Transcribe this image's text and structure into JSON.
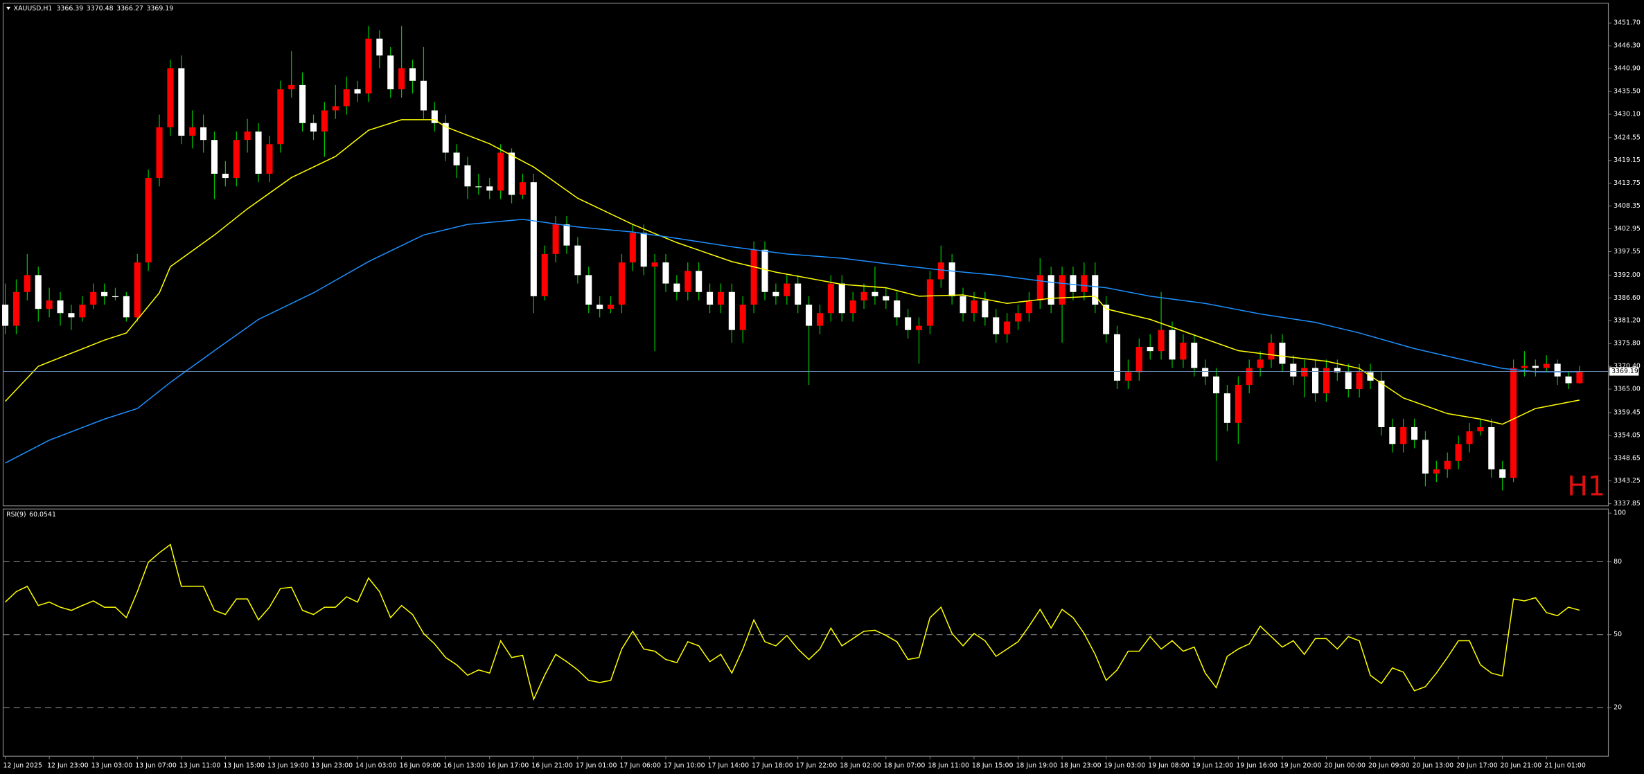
{
  "chart_data": [
    {
      "type": "candlestick",
      "title": "XAUUSD,H1",
      "timeframe_label": "H1",
      "up_color": "#ff0000",
      "down_color": "#ffffff",
      "wick_color": "#00c800",
      "price_line_color": "#6a8fb5",
      "open": [
        3385,
        3380,
        3388,
        3392,
        3384,
        3386,
        3383,
        3382,
        3385,
        3388,
        3387,
        3387,
        3382,
        3395,
        3415,
        3427,
        3441,
        3425,
        3427,
        3424,
        3416,
        3415,
        3424,
        3426,
        3416,
        3423,
        3436,
        3437,
        3428,
        3426,
        3431,
        3432,
        3436,
        3435,
        3448,
        3444,
        3436,
        3441,
        3438,
        3431,
        3428,
        3421,
        3418,
        3413,
        3413,
        3412,
        3421,
        3411,
        3414,
        3387,
        3397,
        3404,
        3399,
        3392,
        3385,
        3384,
        3385,
        3395,
        3402,
        3394,
        3395,
        3390,
        3388,
        3393,
        3388,
        3385,
        3388,
        3379,
        3385,
        3398,
        3388,
        3387,
        3390,
        3385,
        3380,
        3383,
        3390,
        3383,
        3386,
        3388,
        3387,
        3386,
        3382,
        3379,
        3380,
        3391,
        3395,
        3387,
        3383,
        3386,
        3382,
        3378,
        3381,
        3383,
        3386,
        3392,
        3385,
        3392,
        3388,
        3392,
        3385,
        3378,
        3367,
        3369,
        3375,
        3374,
        3379,
        3372,
        3376,
        3370,
        3368,
        3364,
        3357,
        3366,
        3370,
        3372,
        3376,
        3371,
        3368,
        3370,
        3364,
        3370,
        3369,
        3365,
        3369,
        3367,
        3356,
        3352,
        3356,
        3353,
        3345,
        3346,
        3348,
        3352,
        3355,
        3356,
        3346,
        3344,
        3370,
        3370.5,
        3370,
        3371,
        3368,
        3366.39
      ],
      "high": [
        3390,
        3391,
        3397,
        3394,
        3389,
        3388,
        3385,
        3387,
        3390,
        3390,
        3389,
        3388,
        3397,
        3417,
        3430,
        3443,
        3444,
        3431,
        3430,
        3426,
        3419,
        3426,
        3429,
        3428,
        3425,
        3438,
        3445,
        3440,
        3430,
        3433,
        3437,
        3439,
        3438,
        3451,
        3450,
        3446,
        3451,
        3443,
        3446,
        3433,
        3430,
        3423,
        3420,
        3416,
        3415,
        3423,
        3422,
        3416,
        3416,
        3399,
        3406,
        3406,
        3401,
        3394,
        3387,
        3387,
        3397,
        3404,
        3404,
        3397,
        3397,
        3392,
        3395,
        3395,
        3390,
        3390,
        3390,
        3387,
        3400,
        3400,
        3390,
        3392,
        3392,
        3387,
        3385,
        3392,
        3392,
        3388,
        3390,
        3394,
        3389,
        3388,
        3384,
        3382,
        3393,
        3399,
        3397,
        3389,
        3388,
        3388,
        3384,
        3383,
        3385,
        3388,
        3396,
        3394,
        3394,
        3394,
        3395,
        3395,
        3387,
        3380,
        3372,
        3377,
        3378,
        3388,
        3381,
        3378,
        3378,
        3372,
        3370,
        3366,
        3368,
        3372,
        3374,
        3378,
        3378,
        3373,
        3372,
        3372,
        3372,
        3372,
        3371,
        3371,
        3371,
        3369,
        3358,
        3358,
        3358,
        3355,
        3348,
        3350,
        3354,
        3357,
        3358,
        3358,
        3348,
        3372,
        3374,
        3372,
        3373,
        3372,
        3369,
        3370.48
      ],
      "low": [
        3378,
        3378,
        3386,
        3381,
        3382,
        3380,
        3379,
        3381,
        3384,
        3385,
        3386,
        3381,
        3381,
        3393,
        3413,
        3425,
        3423,
        3422,
        3421,
        3410,
        3413,
        3413,
        3421,
        3414,
        3414,
        3421,
        3434,
        3426,
        3424,
        3420,
        3429,
        3430,
        3433,
        3433,
        3441,
        3434,
        3434,
        3435,
        3429,
        3426,
        3419,
        3415,
        3410,
        3411,
        3410,
        3410,
        3409,
        3410,
        3383,
        3386,
        3395,
        3397,
        3390,
        3383,
        3382,
        3383,
        3383,
        3393,
        3392,
        3374,
        3388,
        3386,
        3386,
        3386,
        3383,
        3383,
        3376,
        3376,
        3383,
        3386,
        3385,
        3385,
        3383,
        3366,
        3378,
        3381,
        3381,
        3381,
        3384,
        3385,
        3384,
        3380,
        3377,
        3371,
        3378,
        3389,
        3385,
        3381,
        3381,
        3380,
        3376,
        3376,
        3379,
        3381,
        3384,
        3383,
        3376,
        3386,
        3386,
        3383,
        3376,
        3365,
        3365,
        3367,
        3372,
        3372,
        3370,
        3370,
        3368,
        3366,
        3348,
        3355,
        3352,
        3364,
        3368,
        3370,
        3369,
        3366,
        3363,
        3362,
        3362,
        3367,
        3363,
        3363,
        3365,
        3354,
        3350,
        3350,
        3351,
        3342,
        3343,
        3344,
        3346,
        3350,
        3354,
        3344,
        3341,
        3343,
        3368,
        3368,
        3369,
        3366,
        3365,
        3366.27
      ],
      "close": [
        3380,
        3388,
        3392,
        3384,
        3386,
        3383,
        3382,
        3385,
        3388,
        3387,
        3387,
        3382,
        3395,
        3415,
        3427,
        3441,
        3425,
        3427,
        3424,
        3416,
        3415,
        3424,
        3426,
        3416,
        3423,
        3436,
        3437,
        3428,
        3426,
        3431,
        3432,
        3436,
        3435,
        3448,
        3444,
        3436,
        3441,
        3438,
        3431,
        3428,
        3421,
        3418,
        3413,
        3413,
        3412,
        3421,
        3411,
        3414,
        3387,
        3397,
        3404,
        3399,
        3392,
        3385,
        3384,
        3385,
        3395,
        3402,
        3394,
        3395,
        3390,
        3388,
        3393,
        3388,
        3385,
        3388,
        3379,
        3385,
        3398,
        3388,
        3387,
        3390,
        3385,
        3380,
        3383,
        3390,
        3383,
        3386,
        3388,
        3387,
        3386,
        3382,
        3379,
        3380,
        3391,
        3395,
        3387,
        3383,
        3386,
        3382,
        3378,
        3381,
        3383,
        3386,
        3392,
        3385,
        3392,
        3388,
        3392,
        3385,
        3378,
        3367,
        3369,
        3375,
        3374,
        3379,
        3372,
        3376,
        3370,
        3368,
        3364,
        3357,
        3366,
        3370,
        3372,
        3376,
        3371,
        3368,
        3370,
        3364,
        3370,
        3369,
        3365,
        3369,
        3367,
        3356,
        3352,
        3356,
        3353,
        3345,
        3346,
        3348,
        3352,
        3355,
        3356,
        3346,
        3344,
        3370,
        3370.5,
        3370,
        3371,
        3368,
        3366.39,
        3369.19
      ],
      "lines": [
        {
          "color": "#ffff00",
          "x": [
            0,
            3,
            9,
            11,
            14,
            15,
            19,
            22,
            26,
            30,
            33,
            36,
            39,
            40,
            44,
            48,
            52,
            57,
            61,
            66,
            70,
            76,
            80,
            83,
            87,
            91,
            95,
            99,
            100,
            104,
            108,
            112,
            116,
            120,
            123,
            127,
            131,
            134,
            136,
            139,
            143
          ],
          "values": [
            3362.1,
            3370.4,
            3376.6,
            3378.3,
            3387.8,
            3394,
            3401.5,
            3407.7,
            3415.1,
            3420.1,
            3426.3,
            3428.8,
            3428.8,
            3427.1,
            3423.1,
            3417.6,
            3410.2,
            3404,
            3399.7,
            3395.2,
            3392.7,
            3389.8,
            3389,
            3387,
            3387.3,
            3385.3,
            3386.5,
            3387,
            3384,
            3381.5,
            3377.8,
            3374.1,
            3372.8,
            3371.6,
            3369.9,
            3362.9,
            3359.2,
            3357.9,
            3356.7,
            3360.4,
            3362.4
          ]
        },
        {
          "color": "#1e90ff",
          "x": [
            0,
            4,
            9,
            12,
            15,
            19,
            23,
            28,
            33,
            38,
            42,
            47,
            52,
            57,
            61,
            66,
            71,
            76,
            80,
            85,
            90,
            95,
            100,
            104,
            109,
            114,
            119,
            123,
            128,
            133,
            136,
            139,
            143
          ],
          "values": [
            3347.5,
            3352.9,
            3357.9,
            3360.4,
            3366.6,
            3374.1,
            3381.5,
            3387.8,
            3395.2,
            3401.5,
            3404,
            3405.2,
            3403.4,
            3402.2,
            3400.7,
            3398.7,
            3397,
            3396,
            3394.7,
            3393.2,
            3392,
            3390.3,
            3389,
            3387,
            3385.3,
            3382.8,
            3380.8,
            3378.3,
            3374.6,
            3371.6,
            3369.9,
            3369.1,
            3369.1
          ]
        }
      ],
      "ylim": [
        3337.35,
        3456.4
      ],
      "yticks": [
        {
          "value": 3451.7,
          "label": "3451.70"
        },
        {
          "value": 3446.3,
          "label": "3446.30"
        },
        {
          "value": 3440.9,
          "label": "3440.90"
        },
        {
          "value": 3435.5,
          "label": "3435.50"
        },
        {
          "value": 3430.1,
          "label": "3430.10"
        },
        3424.55,
        3419.15,
        3413.75,
        3408.35,
        3402.95,
        3397.55,
        {
          "value": 3392,
          "label": "3392.00"
        },
        {
          "value": 3386.6,
          "label": "3386.60"
        },
        {
          "value": 3381.2,
          "label": "3381.20"
        },
        {
          "value": 3375.8,
          "label": "3375.80"
        },
        {
          "value": 3370.4,
          "label": "3370.40"
        },
        {
          "value": 3365,
          "label": "3365.00"
        },
        3359.45,
        3354.05,
        3348.65,
        3343.25,
        3337.85
      ],
      "xticks": [
        {
          "value": 0,
          "label": "12 Jun 2025"
        },
        {
          "value": 4,
          "label": "12 Jun 23:00"
        },
        {
          "value": 8,
          "label": "13 Jun 03:00"
        },
        {
          "value": 12,
          "label": "13 Jun 07:00"
        },
        {
          "value": 16,
          "label": "13 Jun 11:00"
        },
        {
          "value": 20,
          "label": "13 Jun 15:00"
        },
        {
          "value": 24,
          "label": "13 Jun 19:00"
        },
        {
          "value": 28,
          "label": "13 Jun 23:00"
        },
        {
          "value": 32,
          "label": "14 Jun 03:00"
        },
        {
          "value": 36,
          "label": "16 Jun 09:00"
        },
        {
          "value": 40,
          "label": "16 Jun 13:00"
        },
        {
          "value": 44,
          "label": "16 Jun 17:00"
        },
        {
          "value": 48,
          "label": "16 Jun 21:00"
        },
        {
          "value": 52,
          "label": "17 Jun 01:00"
        },
        {
          "value": 56,
          "label": "17 Jun 06:00"
        },
        {
          "value": 60,
          "label": "17 Jun 10:00"
        },
        {
          "value": 64,
          "label": "17 Jun 14:00"
        },
        {
          "value": 68,
          "label": "17 Jun 18:00"
        },
        {
          "value": 72,
          "label": "17 Jun 22:00"
        },
        {
          "value": 76,
          "label": "18 Jun 02:00"
        },
        {
          "value": 80,
          "label": "18 Jun 07:00"
        },
        {
          "value": 84,
          "label": "18 Jun 11:00"
        },
        {
          "value": 88,
          "label": "18 Jun 15:00"
        },
        {
          "value": 92,
          "label": "18 Jun 19:00"
        },
        {
          "value": 96,
          "label": "18 Jun 23:00"
        },
        {
          "value": 100,
          "label": "19 Jun 03:00"
        },
        {
          "value": 104,
          "label": "19 Jun 08:00"
        },
        {
          "value": 108,
          "label": "19 Jun 12:00"
        },
        {
          "value": 112,
          "label": "19 Jun 16:00"
        },
        {
          "value": 116,
          "label": "19 Jun 20:00"
        },
        {
          "value": 120,
          "label": "20 Jun 00:00"
        },
        {
          "value": 124,
          "label": "20 Jun 09:00"
        },
        {
          "value": 128,
          "label": "20 Jun 13:00"
        },
        {
          "value": 132,
          "label": "20 Jun 17:00"
        },
        {
          "value": 136,
          "label": "20 Jun 21:00"
        },
        {
          "value": 140,
          "label": "21 Jun 01:00"
        }
      ]
    },
    {
      "type": "line",
      "title": "RSI(9)",
      "color": "#ffff00",
      "values": [
        63.4,
        67.7,
        69.9,
        62,
        63.4,
        61.3,
        60,
        62,
        63.9,
        61.3,
        61.3,
        57,
        67.7,
        79.8,
        83.7,
        87.1,
        69.9,
        69.9,
        69.9,
        60,
        58.3,
        64.7,
        64.7,
        56.1,
        61.3,
        69,
        69.5,
        60,
        58.3,
        61.3,
        61.3,
        65.6,
        63.4,
        73.3,
        67.7,
        57,
        62,
        58.3,
        50.5,
        46.2,
        40.6,
        37.6,
        33.3,
        35.5,
        34.2,
        47.5,
        40.6,
        41.5,
        23.4,
        33.3,
        41.9,
        38.9,
        35.5,
        31.2,
        30.3,
        31.2,
        44.1,
        51.4,
        44.1,
        43.2,
        39.8,
        38.5,
        47.1,
        45.4,
        38.9,
        41.9,
        34.2,
        44.1,
        56.1,
        47.1,
        45.4,
        49.7,
        44.1,
        39.8,
        44.1,
        52.7,
        45.4,
        48.4,
        51.4,
        51.8,
        49.7,
        47.1,
        39.8,
        40.6,
        57,
        61.3,
        50.5,
        45.4,
        50.5,
        47.5,
        41.1,
        44.1,
        47.1,
        53.5,
        60.4,
        52.7,
        60.4,
        57,
        50.5,
        41.9,
        31.2,
        35.5,
        43.2,
        43.2,
        49.2,
        44.1,
        47.5,
        43.2,
        44.9,
        34.2,
        28.2,
        41.1,
        44.1,
        46.2,
        53.5,
        49.2,
        44.9,
        47.5,
        41.9,
        48.4,
        48.4,
        44.1,
        49.2,
        47.5,
        33.3,
        29.9,
        36.3,
        34.6,
        26.9,
        28.6,
        34.2,
        40.6,
        47.5,
        47.5,
        37.6,
        34.2,
        33,
        64.7,
        63.9,
        65.2,
        59.1,
        57.8,
        61.3,
        60.0541
      ],
      "ylim": [
        0,
        101.7
      ],
      "yticks": [
        20,
        50,
        80,
        100
      ],
      "levels": [
        20,
        50,
        80
      ]
    }
  ]
}
